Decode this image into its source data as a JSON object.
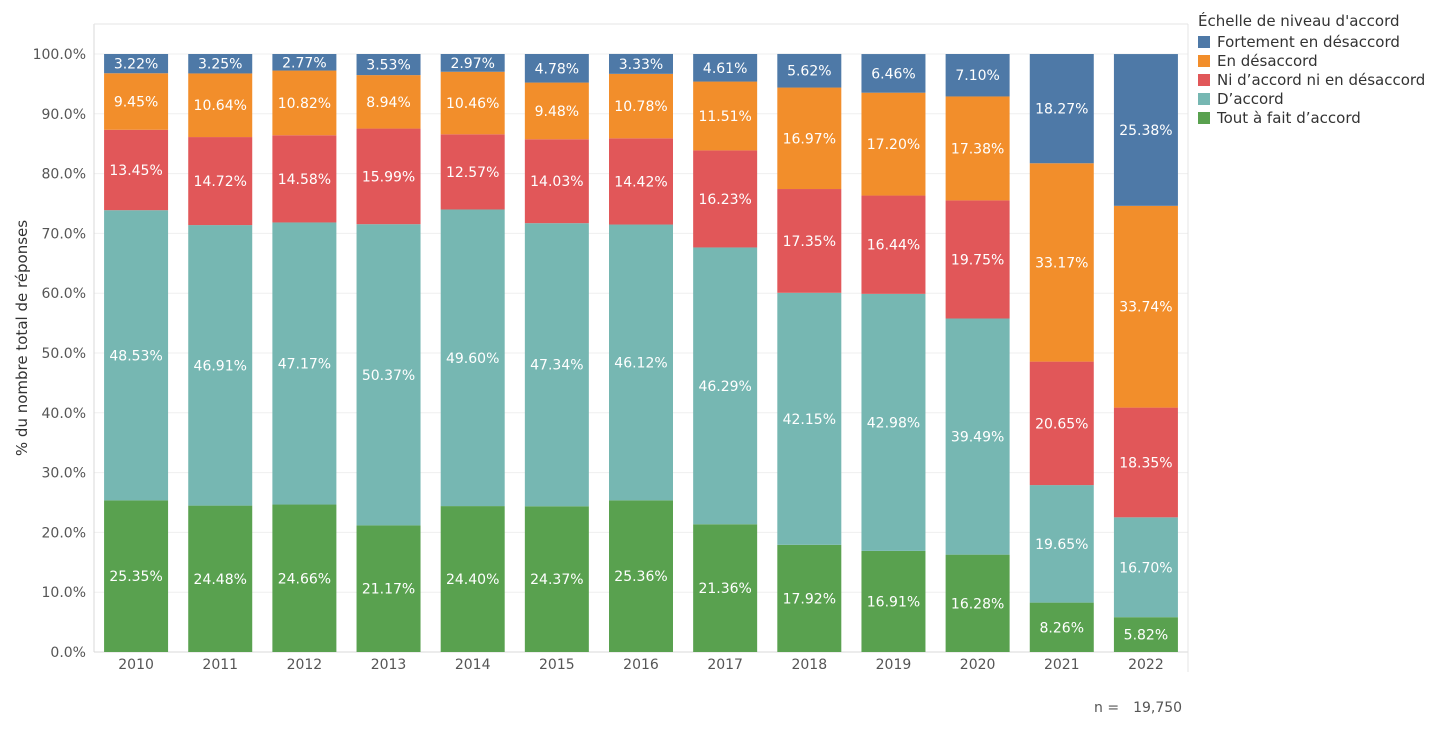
{
  "chart_data": {
    "type": "bar",
    "stacked": true,
    "ylabel": "% du nombre total de réponses",
    "ylim": [
      0,
      100
    ],
    "yticks": [
      "0.0%",
      "10.0%",
      "20.0%",
      "30.0%",
      "40.0%",
      "50.0%",
      "60.0%",
      "70.0%",
      "80.0%",
      "90.0%",
      "100.0%"
    ],
    "grid": true,
    "categories": [
      "2010",
      "2011",
      "2012",
      "2013",
      "2014",
      "2015",
      "2016",
      "2017",
      "2018",
      "2019",
      "2020",
      "2021",
      "2022"
    ],
    "legend_title": "Échelle de niveau d'accord",
    "legend_position": "top-right",
    "series": [
      {
        "name": "Tout à fait d’accord",
        "color": "#59A14F",
        "values": [
          25.35,
          24.48,
          24.66,
          21.17,
          24.4,
          24.37,
          25.36,
          21.36,
          17.92,
          16.91,
          16.28,
          8.26,
          5.82
        ],
        "labels": [
          "25.35%",
          "24.48%",
          "24.66%",
          "21.17%",
          "24.40%",
          "24.37%",
          "25.36%",
          "21.36%",
          "17.92%",
          "16.91%",
          "16.28%",
          "8.26%",
          "5.82%"
        ]
      },
      {
        "name": "D’accord",
        "color": "#76B7B2",
        "values": [
          48.53,
          46.91,
          47.17,
          50.37,
          49.6,
          47.34,
          46.12,
          46.29,
          42.15,
          42.98,
          39.49,
          19.65,
          16.7
        ],
        "labels": [
          "48.53%",
          "46.91%",
          "47.17%",
          "50.37%",
          "49.60%",
          "47.34%",
          "46.12%",
          "46.29%",
          "42.15%",
          "42.98%",
          "39.49%",
          "19.65%",
          "16.70%"
        ]
      },
      {
        "name": "Ni d’accord ni en désaccord",
        "color": "#E15759",
        "values": [
          13.45,
          14.72,
          14.58,
          15.99,
          12.57,
          14.03,
          14.42,
          16.23,
          17.35,
          16.44,
          19.75,
          20.65,
          18.35
        ],
        "labels": [
          "13.45%",
          "14.72%",
          "14.58%",
          "15.99%",
          "12.57%",
          "14.03%",
          "14.42%",
          "16.23%",
          "17.35%",
          "16.44%",
          "19.75%",
          "20.65%",
          "18.35%"
        ]
      },
      {
        "name": "En désaccord",
        "color": "#F28E2B",
        "values": [
          9.45,
          10.64,
          10.82,
          8.94,
          10.46,
          9.48,
          10.78,
          11.51,
          16.97,
          17.2,
          17.38,
          33.17,
          33.74
        ],
        "labels": [
          "9.45%",
          "10.64%",
          "10.82%",
          "8.94%",
          "10.46%",
          "9.48%",
          "10.78%",
          "11.51%",
          "16.97%",
          "17.20%",
          "17.38%",
          "33.17%",
          "33.74%"
        ]
      },
      {
        "name": "Fortement en désaccord",
        "color": "#4E79A7",
        "values": [
          3.22,
          3.25,
          2.77,
          3.53,
          2.97,
          4.78,
          3.33,
          4.61,
          5.62,
          6.46,
          7.1,
          18.27,
          25.38
        ],
        "labels": [
          "3.22%",
          "3.25%",
          "2.77%",
          "3.53%",
          "2.97%",
          "4.78%",
          "3.33%",
          "4.61%",
          "5.62%",
          "6.46%",
          "7.10%",
          "18.27%",
          "25.38%"
        ]
      }
    ]
  },
  "footer": {
    "n_label": "n =",
    "n_value": "19,750"
  }
}
